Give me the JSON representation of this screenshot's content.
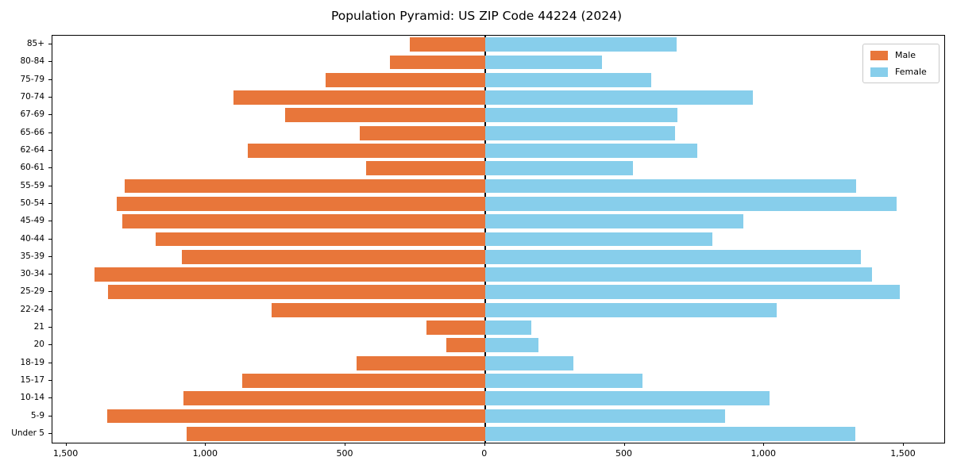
{
  "chart_data": {
    "type": "bar",
    "subtype": "population-pyramid-horizontal-diverging",
    "title": "Population Pyramid: US ZIP Code 44224 (2024)",
    "xlabel": "",
    "ylabel": "",
    "grid": false,
    "legend_position": "upper right",
    "xlim": [
      -1550,
      1645
    ],
    "x_ticks": [
      {
        "value": -1500,
        "label": "1,500"
      },
      {
        "value": -1000,
        "label": "1,000"
      },
      {
        "value": -500,
        "label": "500"
      },
      {
        "value": 0,
        "label": "0"
      },
      {
        "value": 500,
        "label": "500"
      },
      {
        "value": 1000,
        "label": "1,000"
      },
      {
        "value": 1500,
        "label": "1,500"
      }
    ],
    "categories": [
      "85+",
      "80-84",
      "75-79",
      "70-74",
      "67-69",
      "65-66",
      "62-64",
      "60-61",
      "55-59",
      "50-54",
      "45-49",
      "40-44",
      "35-39",
      "30-34",
      "25-29",
      "22-24",
      "21",
      "20",
      "18-19",
      "15-17",
      "10-14",
      "5-9",
      "Under 5"
    ],
    "series": [
      {
        "name": "Male",
        "direction": "left",
        "color": "#e8763a",
        "values": [
          270,
          340,
          570,
          900,
          715,
          450,
          850,
          425,
          1290,
          1320,
          1300,
          1180,
          1085,
          1400,
          1350,
          765,
          210,
          140,
          460,
          870,
          1080,
          1355,
          1070
        ]
      },
      {
        "name": "Female",
        "direction": "right",
        "color": "#87ceeb",
        "values": [
          685,
          420,
          595,
          960,
          690,
          680,
          760,
          530,
          1330,
          1475,
          925,
          815,
          1345,
          1385,
          1485,
          1045,
          165,
          190,
          315,
          565,
          1020,
          860,
          1325
        ]
      }
    ],
    "axis_color": "#000000",
    "zero_line_color": "#000000"
  }
}
